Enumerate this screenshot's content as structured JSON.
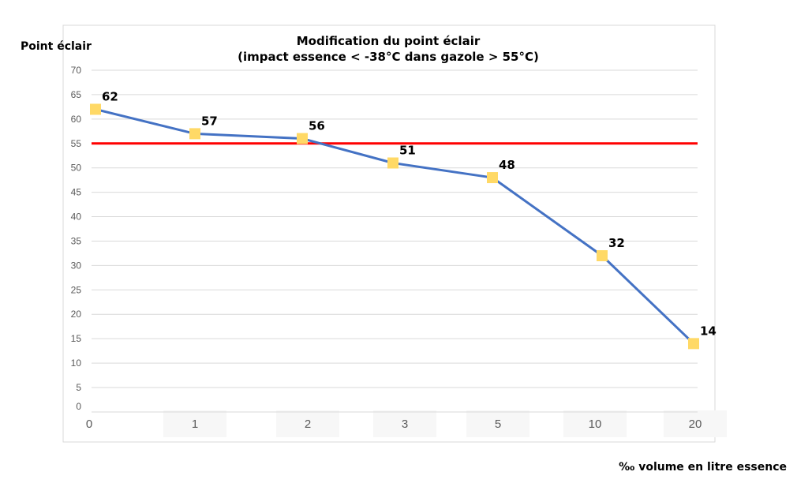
{
  "chart_data": {
    "type": "line",
    "title_line1": "Modification du point éclair",
    "title_line2": "(impact essence < -38°C dans gazole > 55°C)",
    "ylabel": "Point éclair",
    "xlabel": "‰ volume en litre essence",
    "categories": [
      "0",
      "1",
      "2",
      "3",
      "5",
      "10",
      "20"
    ],
    "yticks": [
      "0",
      "5",
      "10",
      "15",
      "20",
      "25",
      "30",
      "35",
      "40",
      "45",
      "50",
      "55",
      "60",
      "65",
      "70"
    ],
    "ylim": [
      0,
      70
    ],
    "grid": true,
    "series": [
      {
        "name": "Point éclair",
        "values": [
          62,
          57,
          56,
          51,
          48,
          32,
          14
        ],
        "data_labels": [
          "62",
          "57",
          "56",
          "51",
          "48",
          "32",
          "14"
        ]
      }
    ],
    "threshold": {
      "value": 55
    },
    "colors": {
      "line": "#4472c4",
      "marker": "#ffd966",
      "threshold": "#ff0000",
      "grid": "#d9d9d9"
    }
  }
}
